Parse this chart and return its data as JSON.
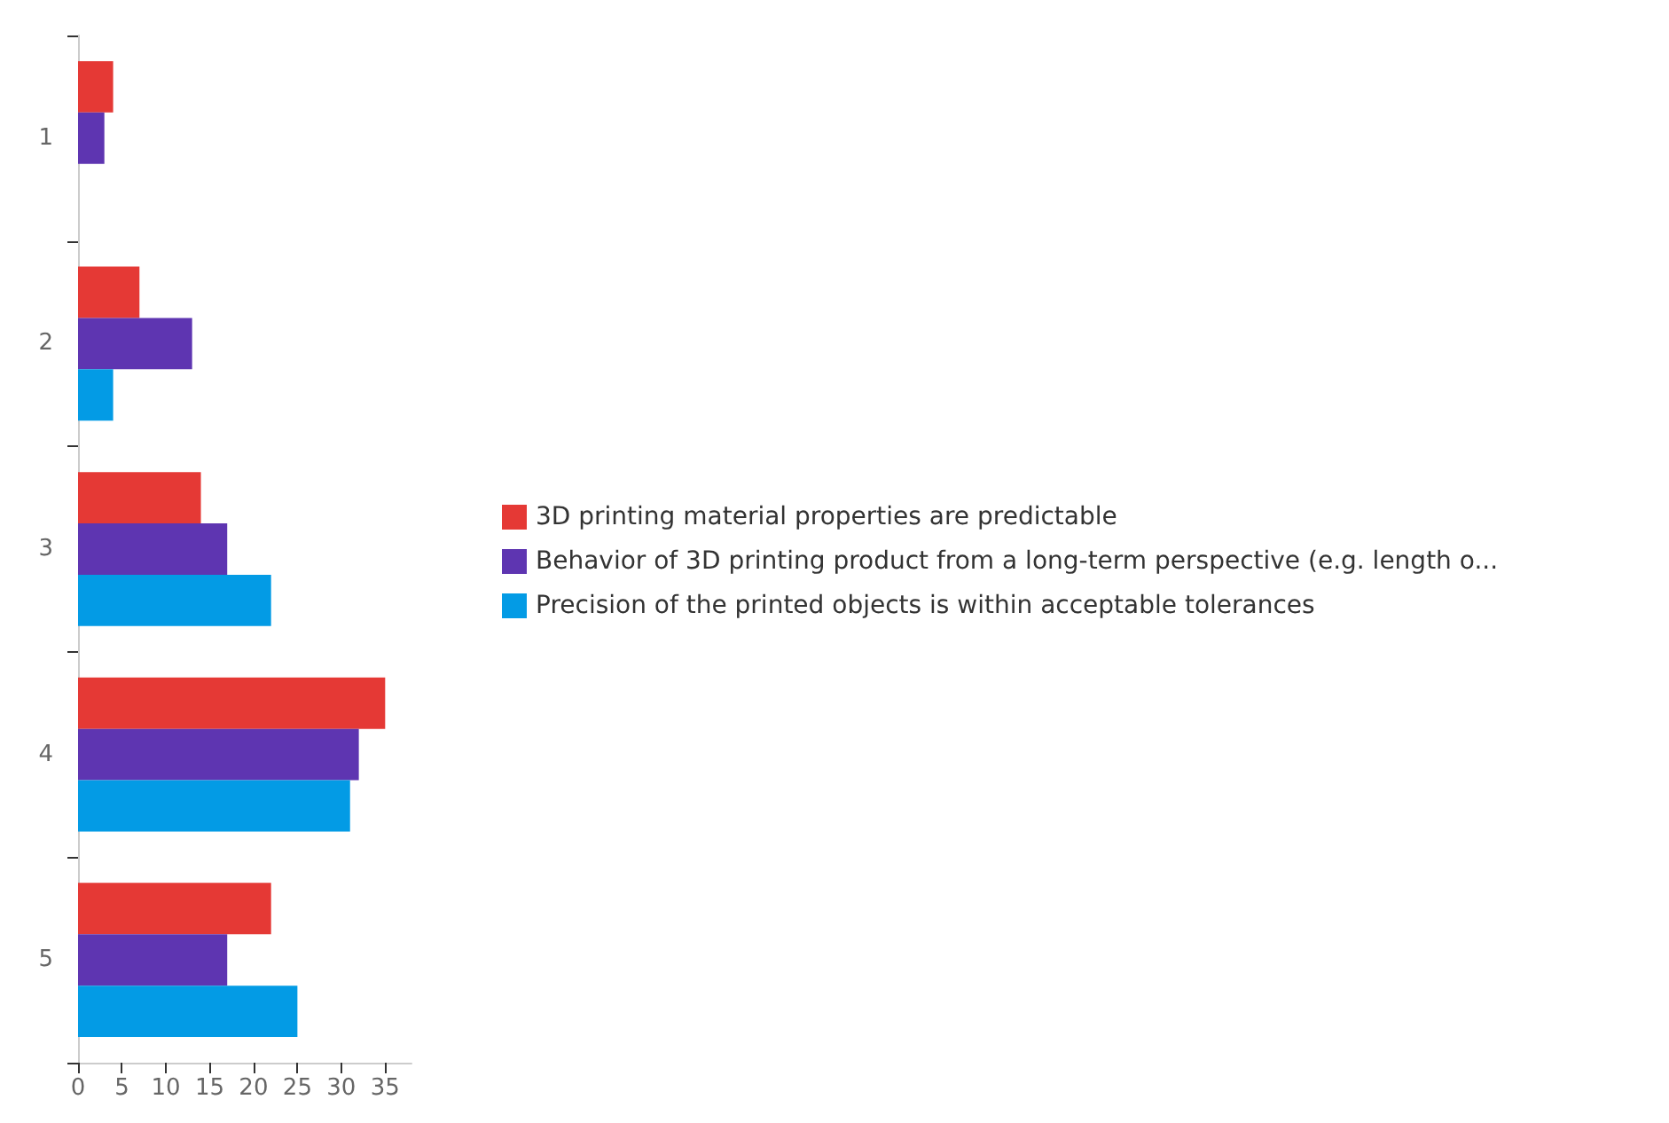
{
  "chart_data": {
    "type": "bar",
    "orientation": "horizontal",
    "categories": [
      "1",
      "2",
      "3",
      "4",
      "5"
    ],
    "series": [
      {
        "name": "3D printing material properties are predictable",
        "color": "#e53935",
        "values": [
          4,
          7,
          14,
          35,
          22
        ]
      },
      {
        "name": "Behavior of 3D printing product from a long-term perspective (e.g. length o...",
        "color": "#5e35b1",
        "values": [
          3,
          13,
          17,
          32,
          17
        ]
      },
      {
        "name": "Precision of the printed objects is within acceptable tolerances",
        "color": "#039be5",
        "values": [
          0,
          4,
          22,
          31,
          25
        ]
      }
    ],
    "xlim": [
      0,
      38
    ],
    "xticks": [
      0,
      5,
      10,
      15,
      20,
      25,
      30,
      35
    ],
    "grid": false,
    "legend": "right"
  }
}
